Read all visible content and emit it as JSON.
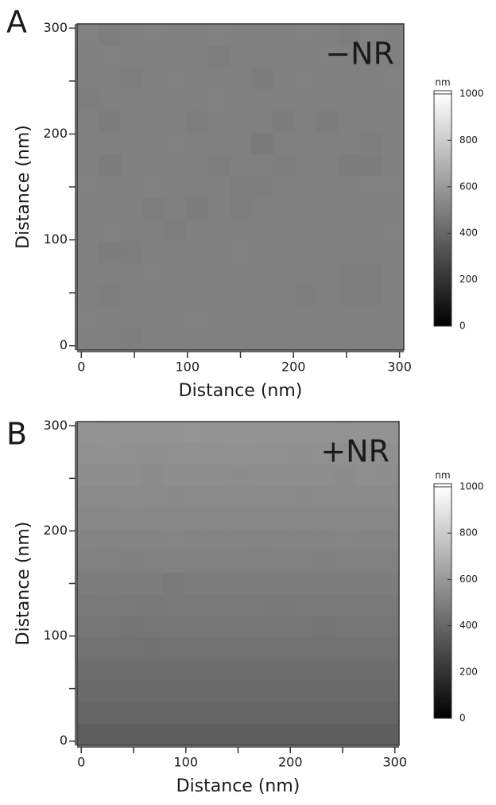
{
  "chart_data": [
    {
      "type": "heatmap",
      "panel_label": "A",
      "annotation": "−NR",
      "xlabel": "Distance (nm)",
      "ylabel": "Distance (nm)",
      "xlim": [
        -4,
        304
      ],
      "ylim": [
        -4,
        304
      ],
      "xticks": [
        0,
        100,
        200,
        300
      ],
      "yticks": [
        0,
        100,
        200,
        300
      ],
      "xminorticks": [
        50,
        150,
        250
      ],
      "yminorticks": [
        50,
        150,
        250
      ],
      "colormap": "gray",
      "colorbar": {
        "label": "nm",
        "lim": [
          0,
          1000
        ],
        "ticks": [
          0,
          200,
          400,
          600,
          800,
          1000
        ]
      },
      "z": [
        [
          505,
          495,
          500,
          505,
          500,
          500,
          505,
          500,
          500,
          500,
          505,
          500,
          495,
          505,
          500
        ],
        [
          500,
          505,
          500,
          500,
          500,
          500,
          495,
          500,
          500,
          500,
          500,
          505,
          500,
          500,
          500
        ],
        [
          500,
          500,
          495,
          500,
          505,
          500,
          500,
          500,
          490,
          500,
          505,
          500,
          500,
          500,
          505
        ],
        [
          495,
          500,
          500,
          500,
          500,
          500,
          505,
          500,
          500,
          500,
          500,
          500,
          500,
          500,
          500
        ],
        [
          500,
          490,
          500,
          500,
          500,
          495,
          500,
          500,
          500,
          490,
          500,
          490,
          500,
          500,
          500
        ],
        [
          500,
          500,
          500,
          500,
          505,
          500,
          500,
          500,
          480,
          500,
          500,
          500,
          500,
          495,
          500
        ],
        [
          500,
          485,
          500,
          500,
          500,
          500,
          495,
          500,
          500,
          495,
          500,
          500,
          490,
          485,
          500
        ],
        [
          505,
          500,
          500,
          505,
          500,
          500,
          500,
          495,
          495,
          500,
          500,
          500,
          500,
          505,
          505
        ],
        [
          500,
          500,
          500,
          495,
          500,
          490,
          500,
          495,
          500,
          500,
          500,
          500,
          500,
          500,
          500
        ],
        [
          500,
          505,
          500,
          500,
          495,
          500,
          500,
          500,
          500,
          500,
          500,
          500,
          500,
          500,
          505
        ],
        [
          500,
          490,
          495,
          500,
          500,
          500,
          500,
          505,
          500,
          500,
          500,
          500,
          500,
          500,
          500
        ],
        [
          500,
          500,
          500,
          505,
          500,
          500,
          500,
          500,
          500,
          500,
          500,
          500,
          495,
          495,
          500
        ],
        [
          500,
          495,
          500,
          500,
          500,
          500,
          500,
          500,
          500,
          500,
          495,
          500,
          495,
          495,
          500
        ],
        [
          505,
          500,
          500,
          500,
          500,
          505,
          500,
          500,
          500,
          500,
          500,
          500,
          500,
          500,
          500
        ],
        [
          500,
          500,
          495,
          500,
          500,
          500,
          500,
          500,
          500,
          500,
          500,
          500,
          500,
          500,
          500
        ]
      ]
    },
    {
      "type": "heatmap",
      "panel_label": "B",
      "annotation": "+NR",
      "xlabel": "Distance (nm)",
      "ylabel": "Distance (nm)",
      "xlim": [
        -4,
        304
      ],
      "ylim": [
        -4,
        304
      ],
      "xticks": [
        0,
        100,
        200,
        300
      ],
      "yticks": [
        0,
        100,
        200,
        300
      ],
      "xminorticks": [
        50,
        150,
        250
      ],
      "yminorticks": [
        50,
        150,
        250
      ],
      "colormap": "gray",
      "colorbar": {
        "label": "nm",
        "lim": [
          0,
          1000
        ],
        "ticks": [
          0,
          200,
          400,
          600,
          800,
          1000
        ]
      },
      "z": [
        [
          575,
          572,
          578,
          575,
          575,
          580,
          575,
          575,
          575,
          578,
          575,
          575,
          572,
          575,
          575
        ],
        [
          565,
          568,
          565,
          562,
          565,
          565,
          565,
          568,
          565,
          565,
          562,
          565,
          565,
          565,
          565
        ],
        [
          555,
          555,
          558,
          550,
          555,
          555,
          555,
          552,
          555,
          555,
          555,
          555,
          550,
          560,
          555
        ],
        [
          545,
          545,
          545,
          545,
          542,
          545,
          545,
          545,
          545,
          545,
          540,
          545,
          545,
          545,
          545
        ],
        [
          530,
          530,
          532,
          530,
          530,
          528,
          530,
          530,
          530,
          530,
          530,
          528,
          530,
          530,
          530
        ],
        [
          518,
          515,
          518,
          518,
          520,
          518,
          518,
          518,
          515,
          518,
          518,
          518,
          520,
          518,
          518
        ],
        [
          505,
          505,
          502,
          505,
          505,
          505,
          505,
          505,
          505,
          505,
          505,
          502,
          505,
          505,
          505
        ],
        [
          492,
          488,
          492,
          492,
          480,
          492,
          492,
          490,
          492,
          492,
          492,
          492,
          490,
          492,
          492
        ],
        [
          478,
          478,
          478,
          475,
          478,
          478,
          478,
          478,
          478,
          475,
          478,
          478,
          478,
          478,
          478
        ],
        [
          462,
          462,
          460,
          462,
          462,
          462,
          462,
          462,
          462,
          462,
          462,
          460,
          462,
          462,
          462
        ],
        [
          448,
          448,
          448,
          445,
          448,
          448,
          448,
          448,
          448,
          448,
          448,
          448,
          448,
          448,
          448
        ],
        [
          432,
          432,
          432,
          432,
          432,
          430,
          432,
          432,
          432,
          432,
          432,
          432,
          432,
          432,
          432
        ],
        [
          415,
          415,
          415,
          415,
          415,
          415,
          415,
          415,
          415,
          415,
          415,
          415,
          415,
          415,
          415
        ],
        [
          395,
          395,
          395,
          395,
          395,
          395,
          395,
          395,
          395,
          395,
          395,
          395,
          395,
          395,
          395
        ],
        [
          370,
          370,
          370,
          372,
          370,
          370,
          370,
          370,
          370,
          370,
          370,
          370,
          370,
          370,
          370
        ]
      ]
    }
  ]
}
